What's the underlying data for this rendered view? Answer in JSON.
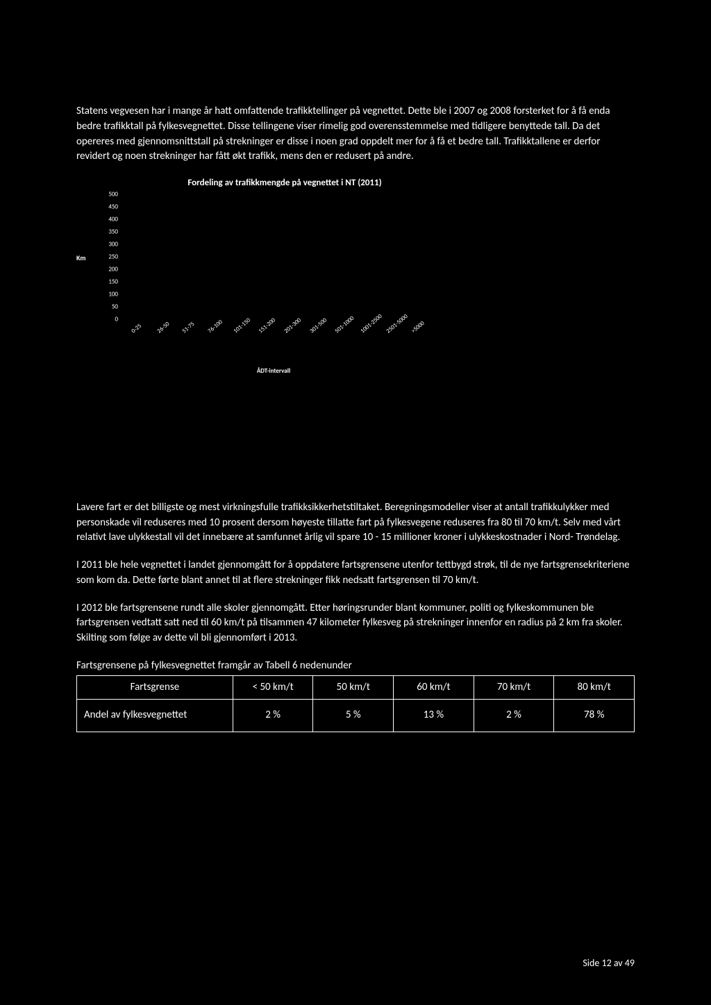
{
  "paragraphs": {
    "p1": "Statens vegvesen har i mange år hatt omfattende trafikktellinger på vegnettet. Dette ble i 2007 og 2008 forsterket for å få enda bedre trafikktall på fylkesvegnettet. Disse tellingene viser rimelig god overensstemmelse med tidligere benyttede tall. Da det opereres med gjennomsnittstall på strekninger er disse i noen grad oppdelt mer for å få et bedre tall. Trafikktallene er derfor revidert og noen strekninger har fått økt trafikk, mens den er redusert på andre.",
    "p2": "Lavere fart er det billigste og mest virkningsfulle trafikksikkerhetstiltaket. Beregningsmodeller viser at antall trafikkulykker med personskade vil reduseres med 10 prosent dersom høyeste tillatte fart på fylkesvegene reduseres fra 80 til 70 km/t. Selv med vårt relativt lave ulykkestall vil det innebære at samfunnet årlig vil spare 10 - 15 millioner kroner i ulykkeskostnader i Nord- Trøndelag.",
    "p3": "I 2011 ble hele vegnettet i landet gjennomgått for å oppdatere fartsgrensene utenfor tettbygd strøk, til de nye fartsgrensekriteriene som kom da. Dette førte blant annet til at flere strekninger fikk nedsatt fartsgrensen til 70 km/t.",
    "p4": "I 2012 ble fartsgrensene rundt alle skoler gjennomgått. Etter høringsrunder blant kommuner, politi og fylkeskommunen ble fartsgrensen vedtatt satt ned til 60 km/t på tilsammen 47 kilometer fylkesveg på strekninger innenfor en radius på 2 km fra skoler. Skilting som følge av dette vil bli gjennomført i 2013."
  },
  "chart": {
    "title": "Fordeling av trafikkmengde på vegnettet i NT (2011)",
    "type": "bar",
    "y_label": "Km",
    "x_label": "ÅDT-intervall",
    "ylim": [
      0,
      500
    ],
    "ytick_step": 50,
    "y_ticks": [
      0,
      50,
      100,
      150,
      200,
      250,
      300,
      350,
      400,
      450,
      500
    ],
    "categories": [
      "0-25",
      "26-50",
      "51-75",
      "76-100",
      "101-150",
      "151-200",
      "201-300",
      "301-500",
      "501-1000",
      "1001-2500",
      "2501-5000",
      ">5000"
    ],
    "values": [
      0,
      0,
      0,
      0,
      0,
      0,
      0,
      0,
      0,
      0,
      0,
      0
    ],
    "background_color": "#000000",
    "text_color": "#ffffff",
    "tick_fontsize": 9,
    "title_fontsize": 13,
    "x_rotation_deg": -40
  },
  "table": {
    "caption": "Fartsgrensene på fylkesvegnettet framgår av Tabell 6 nedenunder",
    "header_row_label": "Fartsgrense",
    "columns": [
      "< 50 km/t",
      "50 km/t",
      "60 km/t",
      "70 km/t",
      "80 km/t"
    ],
    "value_row_label": "Andel av fylkesvegnettet",
    "values": [
      "2 %",
      "5 %",
      "13 %",
      "2 %",
      "78 %"
    ],
    "border_color": "#ffffff"
  },
  "footer": {
    "text": "Side 12 av 49"
  }
}
